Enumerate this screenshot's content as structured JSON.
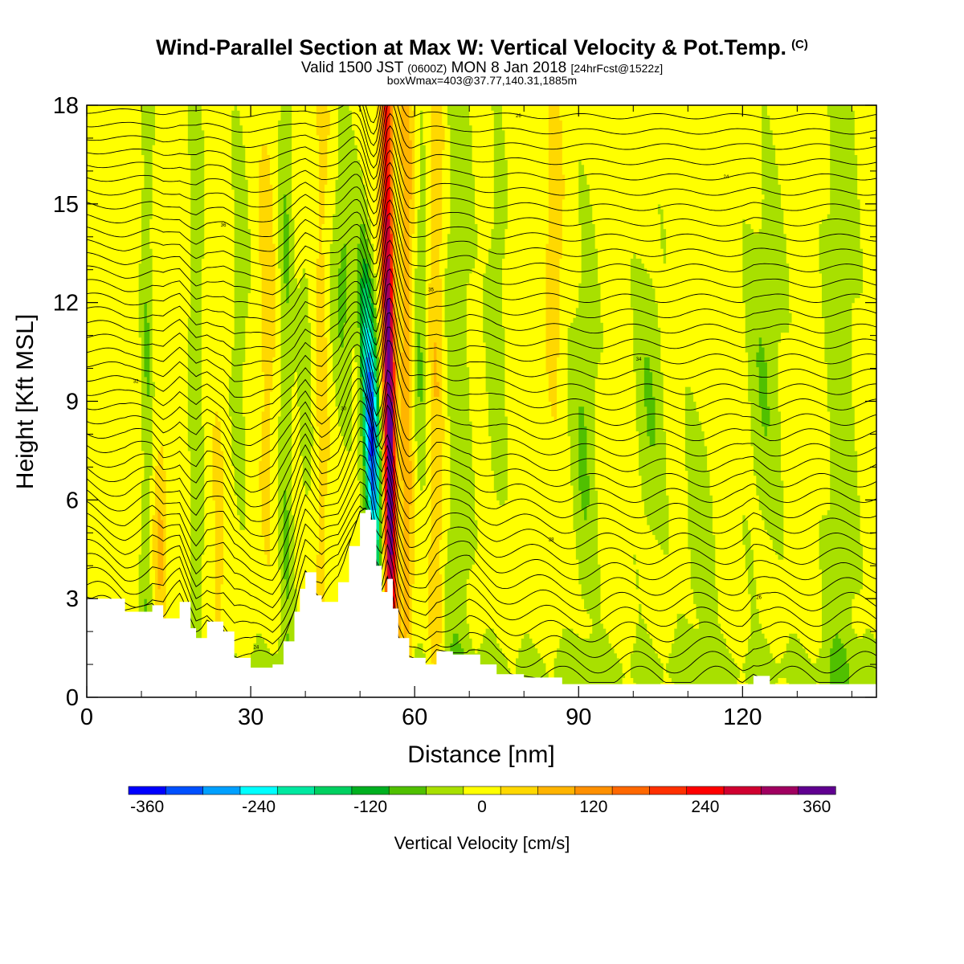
{
  "title": {
    "main": "Wind-Parallel Section at Max W: Vertical Velocity & Pot.Temp.",
    "copyright": "(C)",
    "valid_prefix": "Valid 1500 JST",
    "valid_z": "(0600Z)",
    "valid_date": "MON 8 Jan 2018",
    "valid_fcst": "[24hrFcst@1522z]",
    "box_info": "boxWmax=403@37.77,140.31,1885m"
  },
  "colors": {
    "scale": [
      "#0000ff",
      "#0050ff",
      "#00a0ff",
      "#00ffff",
      "#00e8a0",
      "#00d060",
      "#00b020",
      "#50c000",
      "#a8e000",
      "#ffff00",
      "#ffd800",
      "#ffb400",
      "#ff9000",
      "#ff6800",
      "#ff3000",
      "#ff0000",
      "#d00030",
      "#a00060",
      "#600090"
    ],
    "terrain": "#ffffff",
    "contour": "#000000"
  },
  "chart_data": {
    "type": "heatmap",
    "xlabel": "Distance [nm]",
    "ylabel": "Height [Kft MSL]",
    "xlim": [
      0,
      144.5
    ],
    "ylim": [
      0,
      18
    ],
    "xticks": [
      "0",
      "30",
      "60",
      "90",
      "120"
    ],
    "yticks": [
      "0",
      "3",
      "6",
      "9",
      "12",
      "15",
      "18"
    ],
    "colorbar": {
      "label": "Vertical Velocity [cm/s]",
      "ticks": [
        "-360",
        "-240",
        "-120",
        "0",
        "120",
        "240",
        "360"
      ],
      "bins": [
        -380,
        -340,
        -300,
        -260,
        -220,
        -180,
        -140,
        -100,
        -60,
        -20,
        20,
        60,
        100,
        140,
        180,
        220,
        260,
        300,
        340,
        380
      ]
    },
    "terrain_kft": [
      [
        0,
        3.0
      ],
      [
        7,
        2.6
      ],
      [
        12,
        2.8
      ],
      [
        14,
        2.4
      ],
      [
        17,
        2.9
      ],
      [
        19,
        2.1
      ],
      [
        20,
        1.8
      ],
      [
        22,
        2.3
      ],
      [
        25,
        2.0
      ],
      [
        27,
        1.2
      ],
      [
        30,
        0.9
      ],
      [
        34,
        1.0
      ],
      [
        36,
        1.7
      ],
      [
        38,
        2.6
      ],
      [
        39,
        3.3
      ],
      [
        40,
        3.8
      ],
      [
        42,
        3.1
      ],
      [
        43,
        2.9
      ],
      [
        46,
        3.5
      ],
      [
        48,
        4.6
      ],
      [
        50,
        5.6
      ],
      [
        51,
        5.7
      ],
      [
        52,
        5.4
      ],
      [
        53,
        4.0
      ],
      [
        54,
        3.2
      ],
      [
        55,
        3.6
      ],
      [
        56,
        2.7
      ],
      [
        57,
        1.8
      ],
      [
        59,
        1.2
      ],
      [
        62,
        1.0
      ],
      [
        64,
        1.4
      ],
      [
        67,
        1.3
      ],
      [
        70,
        1.3
      ],
      [
        72,
        1.0
      ],
      [
        75,
        0.7
      ],
      [
        80,
        0.6
      ],
      [
        87,
        0.4
      ],
      [
        120,
        0.4
      ],
      [
        122,
        0.65
      ],
      [
        125,
        0.4
      ],
      [
        144.5,
        0.4
      ]
    ],
    "w_updraft_core_cm_s": 403,
    "w_downdraft_core_cm_s": -360,
    "theta_labels": [
      "24",
      "26",
      "28",
      "30",
      "32",
      "34",
      "35",
      "36"
    ]
  }
}
